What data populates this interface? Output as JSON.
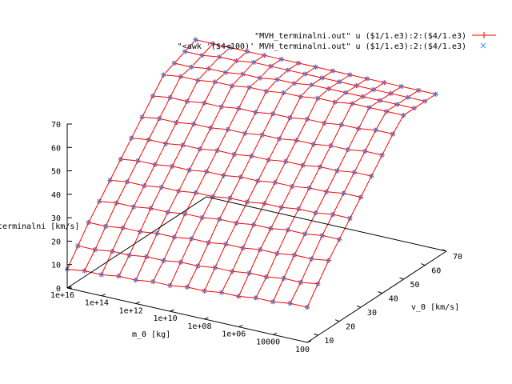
{
  "chart_data": {
    "type": "surface",
    "colors": {
      "surface": "#ff0000",
      "points": "#3399ff",
      "axes": "#000000"
    },
    "zlabel": "v_terminalni [km/s]",
    "xlabel": "m_0 [kg]",
    "ylabel": "v_0 [km/s]",
    "zlim": [
      0,
      70
    ],
    "z_ticks": [
      "0",
      "10",
      "20",
      "30",
      "40",
      "50",
      "60",
      "70"
    ],
    "m_ticks": [
      "1e+16",
      "1e+14",
      "1e+12",
      "1e+10",
      "1e+08",
      "1e+06",
      "10000",
      "100"
    ],
    "v_ticks": [
      "10",
      "20",
      "30",
      "40",
      "50",
      "60",
      "70"
    ],
    "legend": [
      {
        "label": "\"MVH_terminalni.out\" u ($1/1.e3):2:($4/1.e3)",
        "marker": "plus",
        "line": true
      },
      {
        "label": "\"<awk '($4<100)' MVH_terminalni.out\" u ($1/1.e3):2:($4/1.e3)",
        "marker": "cross",
        "line": false
      }
    ],
    "m_grid": [
      16,
      15,
      14,
      13,
      12,
      11,
      10,
      9,
      8,
      7,
      6,
      5,
      4,
      3,
      2
    ],
    "v_grid": [
      5,
      10,
      15,
      20,
      25,
      30,
      35,
      40,
      45,
      50,
      55,
      60,
      65
    ],
    "z_values": [
      [
        8,
        9,
        9,
        10,
        10,
        11,
        11,
        12,
        12,
        13,
        13,
        14,
        14,
        15,
        15
      ],
      [
        15,
        15,
        16,
        16,
        17,
        17,
        18,
        18,
        19,
        19,
        20,
        20,
        21,
        21,
        22
      ],
      [
        22,
        22,
        23,
        23,
        24,
        24,
        25,
        25,
        26,
        26,
        27,
        27,
        28,
        28,
        29
      ],
      [
        28,
        29,
        29,
        30,
        30,
        31,
        31,
        32,
        32,
        33,
        33,
        34,
        34,
        35,
        35
      ],
      [
        34,
        35,
        35,
        36,
        36,
        37,
        37,
        38,
        38,
        39,
        39,
        40,
        40,
        41,
        41
      ],
      [
        40,
        41,
        41,
        42,
        42,
        43,
        43,
        44,
        44,
        45,
        45,
        46,
        46,
        47,
        47
      ],
      [
        46,
        47,
        47,
        48,
        48,
        49,
        49,
        50,
        50,
        51,
        51,
        52,
        52,
        53,
        53
      ],
      [
        52,
        53,
        53,
        54,
        54,
        55,
        55,
        56,
        56,
        57,
        57,
        58,
        58,
        59,
        59
      ],
      [
        58,
        59,
        59,
        60,
        60,
        61,
        61,
        62,
        62,
        63,
        63,
        64,
        64,
        65,
        65
      ],
      [
        64,
        65,
        65,
        66,
        66,
        67,
        67,
        68,
        68,
        69,
        69,
        70,
        70,
        70,
        70
      ],
      [
        66,
        66,
        67,
        67,
        68,
        68,
        69,
        69,
        70,
        70,
        70,
        70,
        70,
        70,
        70
      ],
      [
        68,
        68,
        69,
        69,
        70,
        70,
        70,
        70,
        70,
        70,
        70,
        70,
        70,
        70,
        70
      ],
      [
        70,
        70,
        70,
        70,
        70,
        70,
        70,
        70,
        70,
        70,
        70,
        70,
        70,
        70,
        70
      ]
    ]
  }
}
